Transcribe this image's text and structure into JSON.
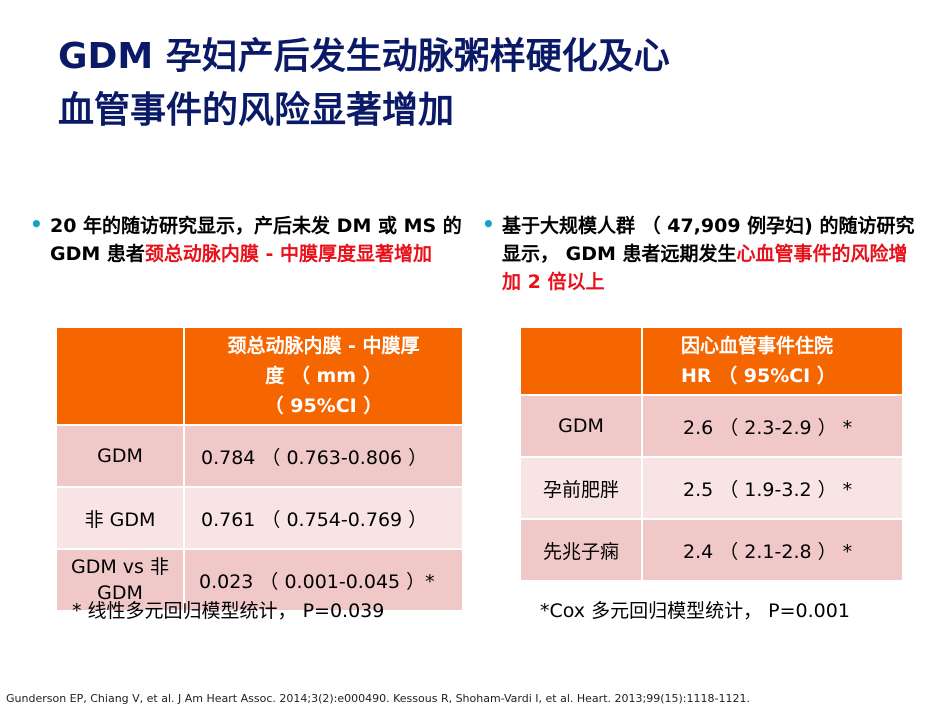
{
  "title": {
    "line1": "GDM 孕妇产后发生动脉粥样硬化及心",
    "line2": "血管事件的风险显著增加"
  },
  "left": {
    "bullet_plain": "20 年的随访研究显示，产后未发 DM 或 MS 的 GDM 患者",
    "bullet_red": "颈总动脉内膜 - 中膜厚度显著增加",
    "table": {
      "header_col2_line1": "颈总动脉内膜 - 中膜厚",
      "header_col2_line2": "度 （ mm ）",
      "header_col2_line3": "（ 95%CI ）",
      "rows": [
        {
          "label": "GDM",
          "value": "0.784 （ 0.763-0.806 ）"
        },
        {
          "label": "非 GDM",
          "value": "0.761 （ 0.754-0.769 ）"
        },
        {
          "label": "GDM vs 非 GDM",
          "value": "0.023 （ 0.001-0.045 ）*"
        }
      ]
    },
    "note": "* 线性多元回归模型统计， P=0.039"
  },
  "right": {
    "bullet_plain": "基于大规模人群 （ 47,909 例孕妇) 的随访研究显示， GDM 患者远期发生",
    "bullet_red": "心血管事件的风险增加 2 倍以上",
    "table": {
      "header_col2_line1": "因心血管事件住院",
      "header_col2_line2": "HR （ 95%CI ）",
      "rows": [
        {
          "label": "GDM",
          "value": "2.6 （ 2.3-2.9 ） *"
        },
        {
          "label": "孕前肥胖",
          "value": "2.5 （ 1.9-3.2 ） *"
        },
        {
          "label": "先兆子痫",
          "value": "2.4 （ 2.1-2.8 ） *"
        }
      ]
    },
    "note": "*Cox 多元回归模型统计， P=0.001"
  },
  "reference": "Gunderson EP, Chiang V, et al. J Am Heart Assoc. 2014;3(2):e000490. Kessous R, Shoham-Vardi I, et al. Heart. 2013;99(15):1118-1121.",
  "colors": {
    "title": "#0a1a66",
    "accent_red": "#e8101a",
    "header_orange": "#f56600",
    "row_dark": "#f0c8c8",
    "row_light": "#f8e4e4",
    "bullet": "#1aa0c8"
  }
}
